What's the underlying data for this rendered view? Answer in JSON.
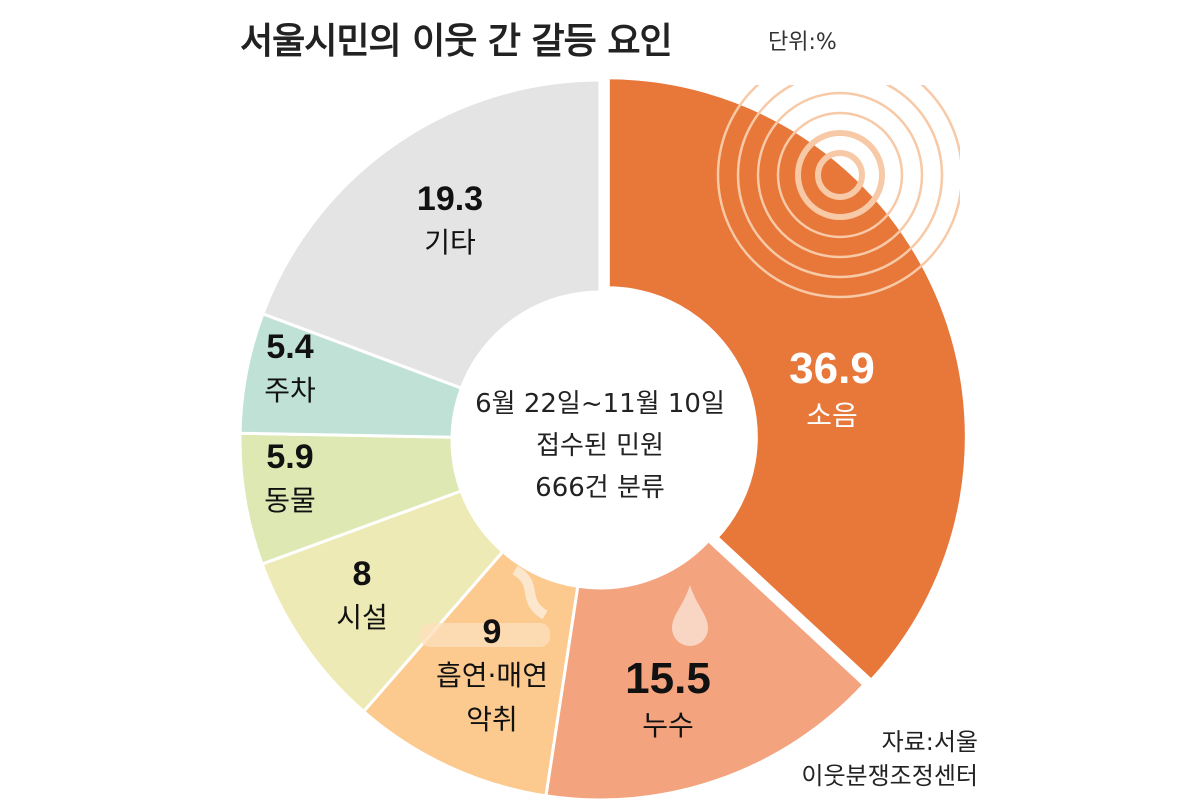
{
  "chart_data": {
    "type": "pie",
    "variant": "donut",
    "title": "서울시민의 이웃 간 갈등 요인",
    "unit": "단위:%",
    "center_text": [
      "6월 22일~11월 10일",
      "접수된 민원",
      "666건 분류"
    ],
    "source": [
      "자료:서울",
      "이웃분쟁조정센터"
    ],
    "slices": [
      {
        "label": "소음",
        "value": 36.9,
        "display": "36.9",
        "color": "#e8773a",
        "text_color": "#ffffff"
      },
      {
        "label": "누수",
        "value": 15.5,
        "display": "15.5",
        "color": "#f3a47e",
        "text_color": "#111111"
      },
      {
        "label": "흡연·매연 악취",
        "lines": [
          "흡연·매연",
          "악취"
        ],
        "value": 9,
        "display": "9",
        "color": "#fcc98e",
        "text_color": "#111111"
      },
      {
        "label": "시설",
        "value": 8,
        "display": "8",
        "color": "#eeeab5",
        "text_color": "#111111"
      },
      {
        "label": "동물",
        "value": 5.9,
        "display": "5.9",
        "color": "#dde8b2",
        "text_color": "#111111"
      },
      {
        "label": "주차",
        "value": 5.4,
        "display": "5.4",
        "color": "#bfe1d6",
        "text_color": "#111111"
      },
      {
        "label": "기타",
        "value": 19.3,
        "display": "19.3",
        "color": "#e4e4e4",
        "text_color": "#111111"
      }
    ]
  }
}
